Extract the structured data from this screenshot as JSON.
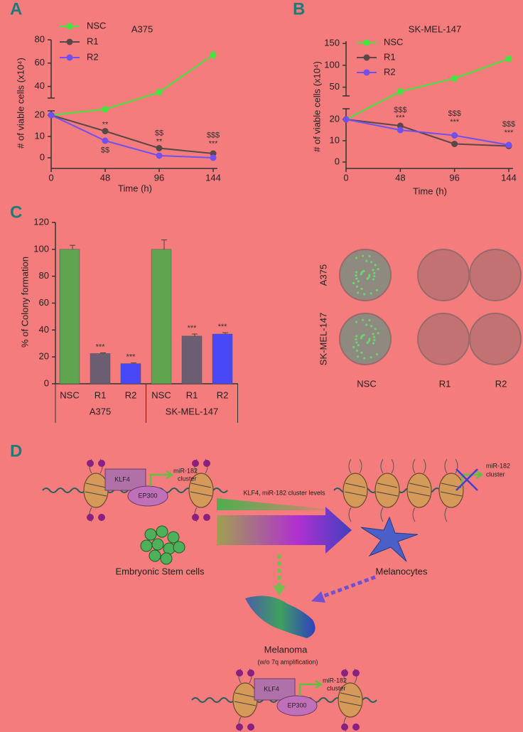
{
  "panels": [
    "A",
    "B",
    "C",
    "D"
  ],
  "chart_data": [
    {
      "type": "line",
      "title": "A375",
      "xlabel": "Time (h)",
      "ylabel": "# of viable cells (x10⁴)",
      "x": [
        0,
        48,
        96,
        144
      ],
      "xlim": [
        0,
        144
      ],
      "xticks": [
        0,
        48,
        96,
        144
      ],
      "ysegments": [
        {
          "ylim": [
            -5,
            22
          ],
          "yticks": [
            0,
            10,
            20
          ]
        },
        {
          "ylim": [
            30,
            80
          ],
          "yticks": [
            40,
            60,
            80
          ]
        }
      ],
      "legend": "upper left",
      "series": [
        {
          "name": "NSC",
          "color": "#3ee83e",
          "values": [
            20,
            23,
            35,
            67
          ],
          "errors": [
            0.5,
            1,
            2,
            4
          ]
        },
        {
          "name": "R1",
          "color": "#5a4848",
          "values": [
            20,
            12.5,
            4.5,
            2
          ],
          "errors": [
            0.5,
            0.5,
            0.5,
            0.3
          ]
        },
        {
          "name": "R2",
          "color": "#7050f0",
          "values": [
            20,
            8,
            1,
            0
          ],
          "errors": [
            0.5,
            0.5,
            0.3,
            0.2
          ]
        }
      ],
      "annotations": [
        {
          "text": "**",
          "x": 48,
          "y": 15.5
        },
        {
          "text": "$$",
          "x": 48,
          "y": 3.5
        },
        {
          "text": "$$",
          "x": 96,
          "y": 11.5
        },
        {
          "text": "**",
          "x": 96,
          "y": 7.5
        },
        {
          "text": "$$$",
          "x": 144,
          "y": 10.5
        },
        {
          "text": "***",
          "x": 144,
          "y": 6.5
        }
      ]
    },
    {
      "type": "line",
      "title": "SK-MEL-147",
      "xlabel": "Time (h)",
      "ylabel": "# of viable cells (x10⁴)",
      "x": [
        0,
        48,
        96,
        144
      ],
      "xlim": [
        0,
        144
      ],
      "xticks": [
        0,
        48,
        96,
        144
      ],
      "ysegments": [
        {
          "ylim": [
            -3,
            25
          ],
          "yticks": [
            0,
            10,
            20
          ]
        },
        {
          "ylim": [
            30,
            155
          ],
          "yticks": [
            50,
            100,
            150
          ]
        }
      ],
      "legend": "upper left",
      "series": [
        {
          "name": "NSC",
          "color": "#3ee83e",
          "values": [
            20,
            40,
            70,
            115
          ],
          "errors": [
            0.5,
            2,
            2,
            3
          ]
        },
        {
          "name": "R1",
          "color": "#5a4848",
          "values": [
            20,
            17,
            8.5,
            7.5
          ],
          "errors": [
            0.5,
            0.8,
            1,
            1
          ]
        },
        {
          "name": "R2",
          "color": "#7050f0",
          "values": [
            20,
            15,
            12.5,
            8
          ],
          "errors": [
            0.5,
            0.8,
            1.5,
            0.8
          ]
        }
      ],
      "annotations": [
        {
          "text": "$$$",
          "x": 48,
          "y": 24.3
        },
        {
          "text": "***",
          "x": 48,
          "y": 20.7
        },
        {
          "text": "$$$",
          "x": 96,
          "y": 22.7
        },
        {
          "text": "***",
          "x": 96,
          "y": 18.7
        },
        {
          "text": "$$$",
          "x": 144,
          "y": 17.7
        },
        {
          "text": "***",
          "x": 144,
          "y": 13.7
        }
      ]
    },
    {
      "type": "bar",
      "ylabel": "% of Colony formation",
      "groups": [
        {
          "name": "A375",
          "categories": [
            "NSC",
            "R1",
            "R2"
          ]
        },
        {
          "name": "SK-MEL-147",
          "categories": [
            "NSC",
            "R1",
            "R2"
          ]
        }
      ],
      "values": [
        100,
        22.5,
        15,
        100,
        35.5,
        37
      ],
      "errors": [
        3,
        0.5,
        0.5,
        7,
        1.5,
        1
      ],
      "colors": [
        "#5fa44f",
        "#6b5e73",
        "#4848f6",
        "#5fa44f",
        "#6b5e73",
        "#4848f6"
      ],
      "ylim": [
        0,
        120
      ],
      "yticks": [
        0,
        20,
        40,
        60,
        80,
        100,
        120
      ],
      "annotations": [
        {
          "text": "***",
          "bar": 1
        },
        {
          "text": "***",
          "bar": 2
        },
        {
          "text": "***",
          "bar": 4
        },
        {
          "text": "***",
          "bar": 5
        }
      ]
    }
  ],
  "colony_images": {
    "rows": [
      "A375",
      "SK-MEL-147"
    ],
    "columns": [
      "NSC",
      "R1",
      "R2"
    ]
  },
  "diagram": {
    "klf4": "KLF4",
    "ep300": "EP300",
    "mir_cluster": [
      "miR-182",
      "cluster"
    ],
    "gradient_label": "KLF4, miR-182 cluster levels",
    "esc": "Embryonic Stem cells",
    "melanocytes": "Melanocytes",
    "melanoma": "Melanoma",
    "melanoma_note": "(w/o 7q amplification)"
  }
}
